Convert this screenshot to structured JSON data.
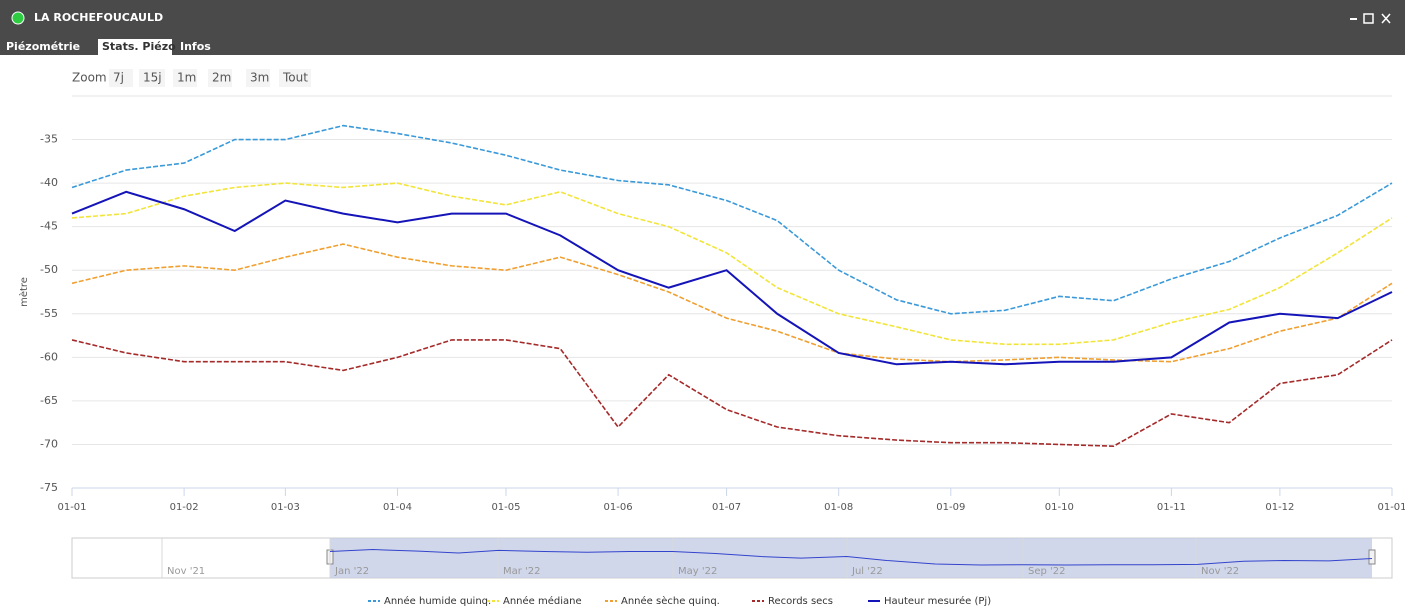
{
  "header": {
    "title": "LA ROCHEFOUCAULD",
    "tabs": [
      "Piézométrie",
      "Stats. Piézo",
      "Infos"
    ]
  },
  "zoom": {
    "label": "Zoom",
    "buttons": [
      "7j",
      "15j",
      "1m",
      "2m",
      "3m",
      "Tout"
    ]
  },
  "chart_data": {
    "type": "line",
    "ylabel": "mètre",
    "grid": true,
    "x": [
      0,
      15,
      31,
      45,
      59,
      75,
      90,
      105,
      120,
      135,
      151,
      165,
      181,
      195,
      212,
      228,
      243,
      258,
      273,
      288,
      304,
      320,
      334,
      350,
      365
    ],
    "xlim": [
      0,
      365
    ],
    "xticks": [
      {
        "value": 0,
        "label": "01-01"
      },
      {
        "value": 31,
        "label": "01-02"
      },
      {
        "value": 59,
        "label": "01-03"
      },
      {
        "value": 90,
        "label": "01-04"
      },
      {
        "value": 120,
        "label": "01-05"
      },
      {
        "value": 151,
        "label": "01-06"
      },
      {
        "value": 181,
        "label": "01-07"
      },
      {
        "value": 212,
        "label": "01-08"
      },
      {
        "value": 243,
        "label": "01-09"
      },
      {
        "value": 273,
        "label": "01-10"
      },
      {
        "value": 304,
        "label": "01-11"
      },
      {
        "value": 334,
        "label": "01-12"
      },
      {
        "value": 365,
        "label": "01-01"
      }
    ],
    "ylim": [
      -75,
      -30
    ],
    "yticks": [
      -75,
      -70,
      -65,
      -60,
      -55,
      -50,
      -45,
      -40,
      -35
    ],
    "series": [
      {
        "name": "Année humide quinq.",
        "color": "#3a9ad9",
        "dashed": true,
        "values": [
          -40.5,
          -38.5,
          -37.7,
          -35,
          -35,
          -33.4,
          -34.3,
          -35.4,
          -36.8,
          -38.5,
          -39.7,
          -40.2,
          -42,
          -44.3,
          -50,
          -53.4,
          -55,
          -54.6,
          -53,
          -53.5,
          -51,
          -49,
          -46.3,
          -43.7,
          -40
        ]
      },
      {
        "name": "Année médiane",
        "color": "#f2e53a",
        "dashed": true,
        "values": [
          -44,
          -43.5,
          -41.5,
          -40.5,
          -40,
          -40.5,
          -40,
          -41.5,
          -42.5,
          -41,
          -43.5,
          -45,
          -48,
          -52,
          -55,
          -56.5,
          -58,
          -58.5,
          -58.5,
          -58,
          -56,
          -54.5,
          -52,
          -48,
          -44
        ]
      },
      {
        "name": "Année sèche quinq.",
        "color": "#f0a030",
        "dashed": true,
        "values": [
          -51.5,
          -50,
          -49.5,
          -50,
          -48.5,
          -47,
          -48.5,
          -49.5,
          -50,
          -48.5,
          -50.5,
          -52.5,
          -55.5,
          -57,
          -59.5,
          -60.2,
          -60.5,
          -60.3,
          -60,
          -60.3,
          -60.5,
          -59,
          -57,
          -55.5,
          -51.5
        ]
      },
      {
        "name": "Records secs",
        "color": "#a52a2a",
        "dashed": true,
        "values": [
          -58,
          -59.5,
          -60.5,
          -60.5,
          -60.5,
          -61.5,
          -60,
          -58,
          -58,
          -59,
          -68,
          -62,
          -66,
          -68,
          -69,
          -69.5,
          -69.8,
          -69.8,
          -70,
          -70.2,
          -66.5,
          -67.5,
          -63,
          -62,
          -58
        ]
      },
      {
        "name": "Hauteur mesurée (Pj)",
        "color": "#1414b8",
        "dashed": false,
        "values": [
          -43.5,
          -41,
          -43,
          -45.5,
          -42,
          -43.5,
          -44.5,
          -43.5,
          -43.5,
          -46,
          -50,
          -52,
          -50,
          -55,
          -59.5,
          -60.8,
          -60.5,
          -60.8,
          -60.5,
          -60.5,
          -60,
          -56,
          -55,
          -55.5,
          -52.5
        ]
      }
    ]
  },
  "navigator": {
    "labels": [
      "Nov '21",
      "Jan '22",
      "Mar '22",
      "May '22",
      "Jul '22",
      "Sep '22",
      "Nov '22"
    ]
  }
}
